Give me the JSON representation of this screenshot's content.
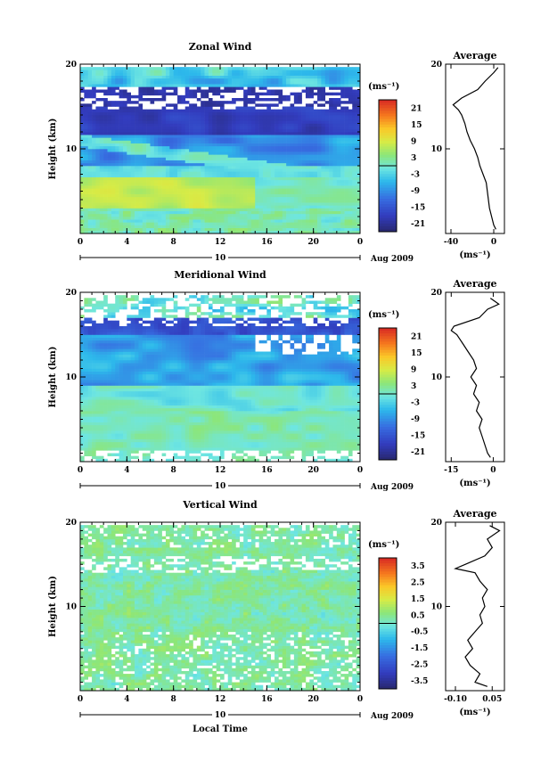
{
  "chart_data": [
    {
      "type": "heatmap",
      "title": "Zonal Wind",
      "xlabel": "",
      "ylabel": "Height (km)",
      "xlim": [
        0,
        24
      ],
      "ylim": [
        0,
        20
      ],
      "x_ticks": [
        "0",
        "4",
        "8",
        "12",
        "16",
        "20",
        "0"
      ],
      "y_ticks": [
        "10",
        "20"
      ],
      "date_day": "10",
      "date_label": "Aug 2009",
      "colorbar": {
        "unit": "(ms⁻¹)",
        "ticks": [
          "21",
          "15",
          "9",
          "3",
          "-3",
          "-9",
          "-15",
          "-21"
        ],
        "range": [
          -24,
          24
        ]
      },
      "profile": {
        "title": "Average",
        "xlabel": "(ms⁻¹)",
        "x_ticks": [
          "-40",
          "0"
        ],
        "xlim": [
          -45,
          10
        ],
        "y_ticks": [
          "10",
          "20"
        ],
        "z": [
          0.5,
          1,
          2,
          3,
          4,
          5,
          6,
          7,
          8,
          9,
          10,
          11,
          12,
          13,
          14,
          14.6,
          15.2,
          16,
          17,
          18,
          19,
          19.6
        ],
        "value": [
          2,
          0,
          -2,
          -4,
          -5,
          -6,
          -7,
          -10,
          -13,
          -15,
          -18,
          -22,
          -25,
          -27,
          -30,
          -33,
          -38,
          -30,
          -15,
          -8,
          0,
          4
        ]
      }
    },
    {
      "type": "heatmap",
      "title": "Meridional Wind",
      "xlabel": "",
      "ylabel": "Height (km)",
      "xlim": [
        0,
        24
      ],
      "ylim": [
        0,
        20
      ],
      "x_ticks": [
        "0",
        "4",
        "8",
        "12",
        "16",
        "20",
        "0"
      ],
      "y_ticks": [
        "10",
        "20"
      ],
      "date_day": "10",
      "date_label": "Aug 2009",
      "colorbar": {
        "unit": "(ms⁻¹)",
        "ticks": [
          "21",
          "15",
          "9",
          "3",
          "-3",
          "-9",
          "-15",
          "-21"
        ],
        "range": [
          -24,
          24
        ]
      },
      "profile": {
        "title": "Average",
        "xlabel": "(ms⁻¹)",
        "x_ticks": [
          "-15",
          "0"
        ],
        "xlim": [
          -17,
          4
        ],
        "y_ticks": [
          "10",
          "20"
        ],
        "z": [
          0.5,
          1,
          2,
          3,
          4,
          5,
          6,
          7,
          8,
          9,
          10,
          11,
          12,
          13,
          14,
          15,
          15.5,
          16,
          17,
          18,
          18.6,
          19.3
        ],
        "value": [
          -1,
          -2,
          -3,
          -4,
          -5,
          -4,
          -6,
          -5,
          -7,
          -6,
          -8,
          -6,
          -7,
          -9,
          -11,
          -13,
          -15,
          -14,
          -5,
          -2,
          2,
          -1
        ]
      }
    },
    {
      "type": "heatmap",
      "title": "Vertical Wind",
      "xlabel": "Local Time",
      "ylabel": "Height (km)",
      "xlim": [
        0,
        24
      ],
      "ylim": [
        0,
        20
      ],
      "x_ticks": [
        "0",
        "4",
        "8",
        "12",
        "16",
        "20",
        "0"
      ],
      "y_ticks": [
        "10",
        "20"
      ],
      "date_day": "10",
      "date_label": "Aug 2009",
      "colorbar": {
        "unit": "(ms⁻¹)",
        "ticks": [
          "3.5",
          "2.5",
          "1.5",
          "0.5",
          "-0.5",
          "-1.5",
          "-2.5",
          "-3.5"
        ],
        "range": [
          -4,
          4
        ]
      },
      "profile": {
        "title": "Average",
        "xlabel": "(ms⁻¹)",
        "x_ticks": [
          "-0.10",
          "0.05"
        ],
        "xlim": [
          -0.14,
          0.1
        ],
        "y_ticks": [
          "10",
          "20"
        ],
        "z": [
          0.5,
          1,
          2,
          3,
          4,
          5,
          6,
          7,
          8,
          9,
          10,
          11,
          12,
          13,
          14,
          14.5,
          15,
          16,
          17,
          18,
          19,
          19.6
        ],
        "value": [
          0.03,
          -0.02,
          0.0,
          -0.04,
          -0.06,
          -0.03,
          -0.05,
          -0.02,
          0.01,
          0.0,
          0.02,
          0.01,
          0.03,
          0.0,
          -0.02,
          -0.1,
          -0.06,
          0.02,
          0.05,
          0.03,
          0.08,
          0.04
        ]
      }
    }
  ]
}
